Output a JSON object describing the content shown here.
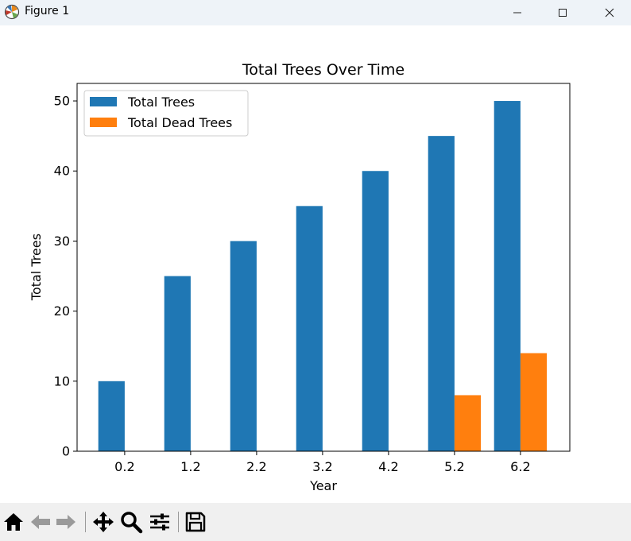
{
  "window": {
    "title": "Figure 1"
  },
  "toolbar": {
    "items": [
      "home-icon",
      "back-icon",
      "forward-icon",
      "pan-icon",
      "zoom-icon",
      "configure-subplots-icon",
      "save-icon"
    ]
  },
  "colors": {
    "series_0": "#1f77b4",
    "series_1": "#ff7f0e"
  },
  "chart_data": {
    "type": "bar",
    "title": "Total Trees Over Time",
    "xlabel": "Year",
    "ylabel": "Total Trees",
    "categories": [
      "0.2",
      "1.2",
      "2.2",
      "3.2",
      "4.2",
      "5.2",
      "6.2"
    ],
    "series": [
      {
        "name": "Total Trees",
        "values": [
          10,
          25,
          30,
          35,
          40,
          45,
          50
        ]
      },
      {
        "name": "Total Dead Trees",
        "values": [
          0,
          0,
          0,
          0,
          0,
          8,
          14
        ]
      }
    ],
    "ylim": [
      0,
      52.5
    ],
    "yticks": [
      0,
      10,
      20,
      30,
      40,
      50
    ],
    "legend": "upper-left",
    "grid": false
  }
}
